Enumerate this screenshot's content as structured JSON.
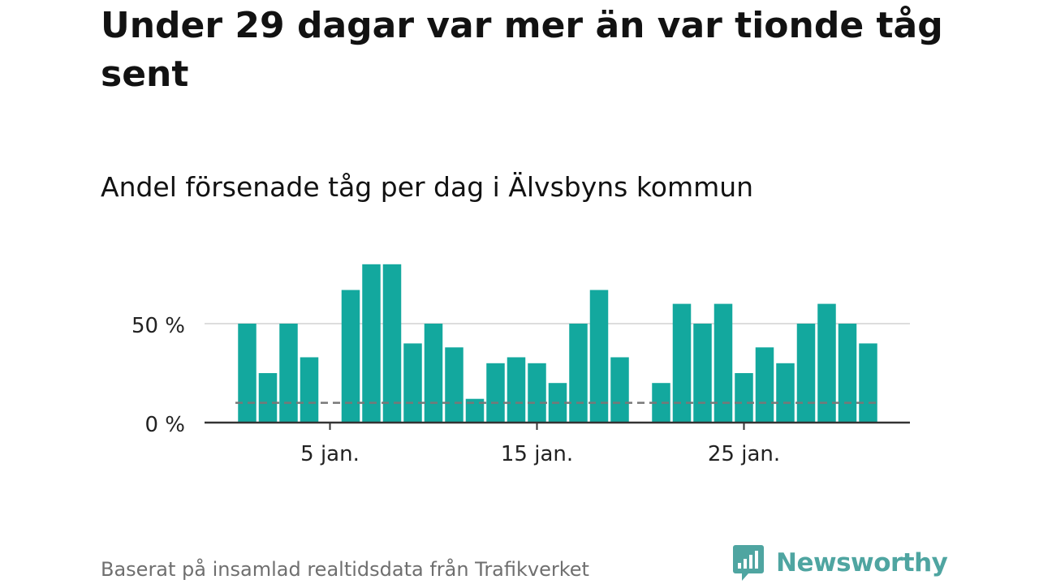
{
  "title": "Under 29 dagar var mer än var tionde tåg sent",
  "subtitle": "Andel försenade tåg per dag i Älvsbyns kommun",
  "footer": "Baserat på insamlad realtidsdata från Trafikverket",
  "brand": "Newsworthy",
  "colors": {
    "bar": "#13a89e",
    "reference_line": "#777777",
    "grid": "#dddddd",
    "axis": "#333333",
    "brand": "#4fa5a1",
    "footer_text": "#6f6f6f"
  },
  "icons": [
    "newsworthy-logo-icon"
  ],
  "chart_data": {
    "type": "bar",
    "x": [
      1,
      2,
      3,
      4,
      5,
      6,
      7,
      8,
      9,
      10,
      11,
      12,
      13,
      14,
      15,
      16,
      17,
      18,
      19,
      20,
      21,
      22,
      23,
      24,
      25,
      26,
      27,
      28,
      29,
      30,
      31
    ],
    "values": [
      50,
      25,
      50,
      33,
      null,
      67,
      80,
      80,
      40,
      50,
      38,
      12,
      30,
      33,
      30,
      20,
      50,
      67,
      33,
      null,
      20,
      60,
      50,
      60,
      25,
      38,
      30,
      50,
      60,
      50,
      40
    ],
    "unit": "%",
    "reference_line": 10,
    "grid": true,
    "ylim": [
      0,
      80
    ],
    "y_ticks": [
      {
        "value": 0,
        "label": "0 %"
      },
      {
        "value": 50,
        "label": "50 %"
      }
    ],
    "x_ticks": [
      {
        "value": 5,
        "label": "5 jan."
      },
      {
        "value": 15,
        "label": "15 jan."
      },
      {
        "value": 25,
        "label": "25 jan."
      }
    ]
  }
}
